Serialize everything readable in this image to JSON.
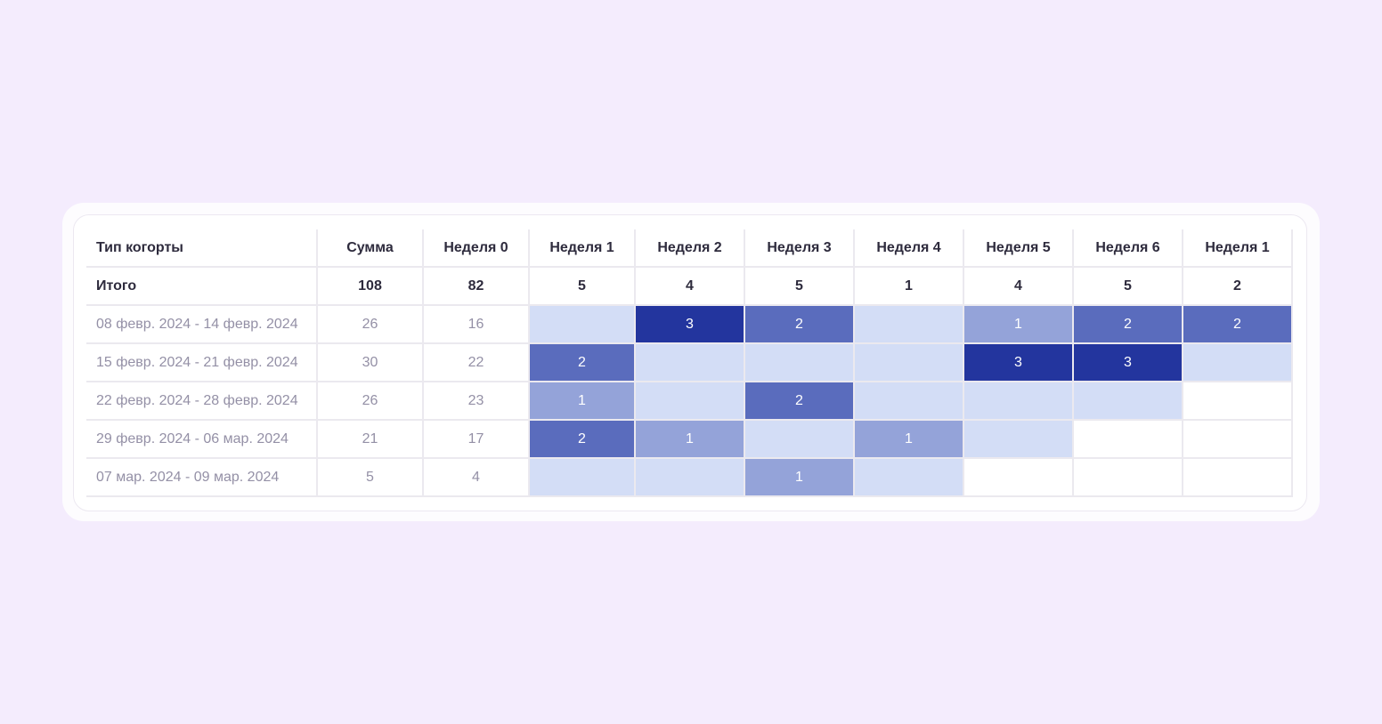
{
  "table": {
    "headers": [
      "Тип когорты",
      "Сумма",
      "Неделя 0",
      "Неделя 1",
      "Неделя 2",
      "Неделя 3",
      "Неделя 4",
      "Неделя 5",
      "Неделя 6",
      "Неделя 1"
    ],
    "total_row": {
      "label": "Итого",
      "sum": "108",
      "week0": "82",
      "weeks": [
        "5",
        "4",
        "5",
        "1",
        "4",
        "5",
        "2"
      ]
    },
    "rows": [
      {
        "label": "08 февр. 2024 - 14 февр. 2024",
        "sum": "26",
        "week0": "16",
        "weeks": [
          null,
          3,
          2,
          null,
          1,
          2,
          2
        ],
        "filled": 7
      },
      {
        "label": "15 февр. 2024 - 21 февр. 2024",
        "sum": "30",
        "week0": "22",
        "weeks": [
          2,
          null,
          null,
          null,
          3,
          3,
          null
        ],
        "filled": 7
      },
      {
        "label": "22 февр. 2024 - 28 февр. 2024",
        "sum": "26",
        "week0": "23",
        "weeks": [
          1,
          null,
          2,
          null,
          null,
          null,
          null
        ],
        "filled": 6
      },
      {
        "label": "29 февр. 2024 - 06 мар. 2024",
        "sum": "21",
        "week0": "17",
        "weeks": [
          2,
          1,
          null,
          1,
          null,
          null,
          null
        ],
        "filled": 5
      },
      {
        "label": "07 мар. 2024 - 09 мар. 2024",
        "sum": "5",
        "week0": "4",
        "weeks": [
          null,
          null,
          1,
          null,
          null,
          null,
          null
        ],
        "filled": 4
      }
    ]
  },
  "colors": {
    "background": "#f4ecfd",
    "level_0": "#d3ddf6",
    "level_1": "#94a3d9",
    "level_2": "#5a6cbd",
    "level_3": "#23359e"
  }
}
